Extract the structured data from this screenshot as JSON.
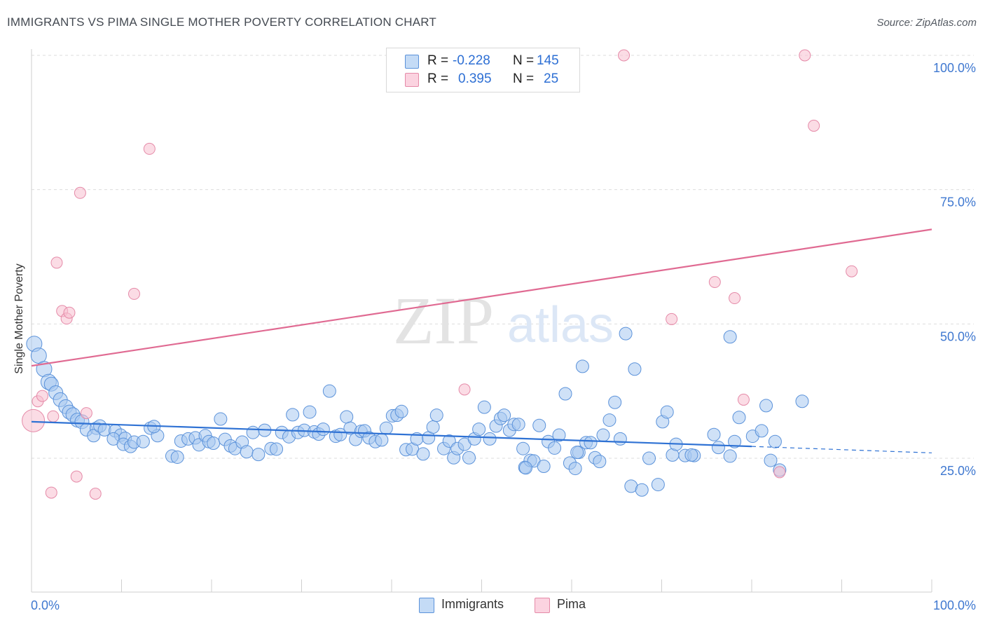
{
  "title": "IMMIGRANTS VS PIMA SINGLE MOTHER POVERTY CORRELATION CHART",
  "source": "Source: ZipAtlas.com",
  "watermark": {
    "zip": "ZIP",
    "atlas": "atlas"
  },
  "legend": {
    "rows": [
      {
        "r_label": "R =",
        "r_value": "-0.228",
        "n_label": "N =",
        "n_value": "145"
      },
      {
        "r_label": "R =",
        "r_value": "0.395",
        "n_label": "N =",
        "n_value": "25"
      }
    ]
  },
  "bottom_legend": {
    "immigrants": "Immigrants",
    "pima": "Pima"
  },
  "colors": {
    "immigrants_fill": "#a8c8f0",
    "immigrants_stroke": "#5b92da",
    "immigrants_line": "#2f72d4",
    "pima_fill": "#f7bfd0",
    "pima_stroke": "#e58aa8",
    "pima_line": "#e06a92",
    "axis_text": "#3f78d0",
    "grid": "#dddddd"
  },
  "chart_data": {
    "type": "scatter",
    "title": "IMMIGRANTS VS PIMA SINGLE MOTHER POVERTY CORRELATION CHART",
    "xlabel": "",
    "ylabel": "Single Mother Poverty",
    "xlim": [
      0,
      100
    ],
    "ylim": [
      0,
      102
    ],
    "x_tick_labels": [
      "0.0%",
      "100.0%"
    ],
    "y_ticks": [
      25,
      50,
      75,
      100
    ],
    "y_tick_labels": [
      "25.0%",
      "50.0%",
      "75.0%",
      "100.0%"
    ],
    "series": [
      {
        "name": "Immigrants",
        "r": -0.228,
        "n": 145,
        "trend": {
          "x_start": 0,
          "y_start": 31.8,
          "x_end": 80,
          "y_end": 27.2,
          "dashed_to_x": 100,
          "dashed_to_y": 26.0
        },
        "points": [
          [
            0.3,
            46.3
          ],
          [
            0.8,
            44.1
          ],
          [
            1.4,
            41.6
          ],
          [
            1.9,
            39.2
          ],
          [
            2.2,
            38.8
          ],
          [
            2.7,
            37.2
          ],
          [
            3.2,
            35.9
          ],
          [
            3.8,
            34.6
          ],
          [
            4.2,
            33.6
          ],
          [
            4.6,
            33.1
          ],
          [
            5.1,
            32.1
          ],
          [
            5.6,
            31.8
          ],
          [
            6.1,
            30.3
          ],
          [
            7.2,
            30.6
          ],
          [
            6.9,
            29.2
          ],
          [
            7.6,
            31.0
          ],
          [
            8.1,
            30.3
          ],
          [
            9.3,
            30.1
          ],
          [
            9.9,
            29.3
          ],
          [
            9.1,
            28.6
          ],
          [
            10.4,
            28.7
          ],
          [
            10.2,
            27.6
          ],
          [
            11.0,
            27.2
          ],
          [
            11.4,
            28.0
          ],
          [
            13.2,
            30.6
          ],
          [
            12.4,
            28.1
          ],
          [
            14.0,
            29.2
          ],
          [
            13.6,
            30.9
          ],
          [
            15.6,
            25.4
          ],
          [
            16.2,
            25.2
          ],
          [
            16.6,
            28.2
          ],
          [
            17.4,
            28.6
          ],
          [
            18.2,
            28.8
          ],
          [
            18.6,
            27.5
          ],
          [
            19.3,
            29.2
          ],
          [
            19.7,
            28.1
          ],
          [
            20.2,
            27.8
          ],
          [
            21.0,
            32.3
          ],
          [
            21.5,
            28.5
          ],
          [
            22.1,
            27.3
          ],
          [
            22.6,
            26.8
          ],
          [
            23.4,
            28.0
          ],
          [
            23.9,
            26.2
          ],
          [
            24.6,
            29.8
          ],
          [
            25.2,
            25.7
          ],
          [
            25.9,
            30.2
          ],
          [
            26.6,
            26.8
          ],
          [
            27.2,
            26.7
          ],
          [
            27.8,
            29.8
          ],
          [
            28.6,
            29.0
          ],
          [
            29.0,
            33.1
          ],
          [
            29.6,
            29.8
          ],
          [
            30.3,
            30.2
          ],
          [
            30.9,
            33.6
          ],
          [
            31.4,
            29.9
          ],
          [
            31.9,
            29.5
          ],
          [
            32.4,
            30.4
          ],
          [
            33.1,
            37.5
          ],
          [
            33.8,
            29.1
          ],
          [
            34.3,
            29.4
          ],
          [
            35.0,
            32.7
          ],
          [
            35.4,
            30.6
          ],
          [
            36.0,
            28.5
          ],
          [
            36.6,
            30.0
          ],
          [
            37.0,
            30.1
          ],
          [
            37.5,
            28.8
          ],
          [
            38.2,
            28.1
          ],
          [
            38.9,
            28.4
          ],
          [
            39.4,
            30.6
          ],
          [
            40.1,
            32.9
          ],
          [
            40.6,
            33.0
          ],
          [
            41.1,
            33.7
          ],
          [
            41.6,
            26.6
          ],
          [
            42.3,
            26.7
          ],
          [
            42.8,
            28.6
          ],
          [
            43.5,
            25.8
          ],
          [
            44.1,
            28.8
          ],
          [
            44.6,
            30.8
          ],
          [
            45.0,
            33.0
          ],
          [
            45.8,
            26.8
          ],
          [
            46.4,
            28.2
          ],
          [
            46.9,
            25.1
          ],
          [
            47.3,
            26.8
          ],
          [
            48.1,
            27.6
          ],
          [
            48.6,
            25.1
          ],
          [
            49.2,
            28.6
          ],
          [
            49.7,
            30.4
          ],
          [
            50.3,
            34.5
          ],
          [
            50.9,
            28.6
          ],
          [
            51.6,
            31.0
          ],
          [
            52.1,
            32.4
          ],
          [
            52.5,
            33.0
          ],
          [
            53.1,
            30.2
          ],
          [
            53.6,
            31.3
          ],
          [
            54.1,
            31.3
          ],
          [
            54.6,
            26.8
          ],
          [
            54.8,
            23.3
          ],
          [
            55.4,
            24.6
          ],
          [
            55.8,
            24.5
          ],
          [
            56.4,
            31.1
          ],
          [
            56.9,
            23.5
          ],
          [
            57.4,
            28.1
          ],
          [
            58.1,
            26.9
          ],
          [
            58.6,
            29.3
          ],
          [
            59.3,
            37.0
          ],
          [
            59.8,
            24.1
          ],
          [
            60.4,
            23.1
          ],
          [
            60.8,
            26.1
          ],
          [
            61.2,
            42.1
          ],
          [
            61.6,
            27.9
          ],
          [
            62.1,
            27.9
          ],
          [
            62.6,
            25.1
          ],
          [
            63.1,
            24.4
          ],
          [
            63.5,
            29.3
          ],
          [
            64.2,
            32.1
          ],
          [
            64.8,
            35.4
          ],
          [
            65.4,
            28.6
          ],
          [
            66.0,
            48.2
          ],
          [
            67.0,
            41.6
          ],
          [
            66.6,
            19.8
          ],
          [
            67.8,
            19.1
          ],
          [
            68.6,
            25.0
          ],
          [
            69.6,
            20.1
          ],
          [
            70.1,
            31.8
          ],
          [
            70.6,
            33.6
          ],
          [
            71.2,
            25.6
          ],
          [
            71.6,
            27.6
          ],
          [
            72.6,
            25.5
          ],
          [
            73.6,
            25.5
          ],
          [
            75.8,
            29.4
          ],
          [
            76.3,
            27.0
          ],
          [
            77.6,
            25.4
          ],
          [
            78.1,
            28.1
          ],
          [
            78.6,
            32.6
          ],
          [
            80.1,
            29.1
          ],
          [
            81.1,
            30.1
          ],
          [
            81.6,
            34.8
          ],
          [
            82.1,
            24.6
          ],
          [
            82.6,
            28.1
          ],
          [
            83.1,
            22.8
          ],
          [
            85.6,
            35.6
          ],
          [
            73.3,
            25.6
          ],
          [
            77.6,
            47.6
          ],
          [
            60.6,
            26.1
          ],
          [
            54.9,
            23.2
          ]
        ]
      },
      {
        "name": "Pima",
        "r": 0.395,
        "n": 25,
        "trend": {
          "x_start": 0,
          "y_start": 42.2,
          "x_end": 100,
          "y_end": 67.6
        },
        "points": [
          [
            0.2,
            32.0
          ],
          [
            0.7,
            35.6
          ],
          [
            1.2,
            36.6
          ],
          [
            2.2,
            18.6
          ],
          [
            2.4,
            32.8
          ],
          [
            2.8,
            61.4
          ],
          [
            3.4,
            52.4
          ],
          [
            3.9,
            51.0
          ],
          [
            4.2,
            52.1
          ],
          [
            5.0,
            21.6
          ],
          [
            5.4,
            74.4
          ],
          [
            6.1,
            33.4
          ],
          [
            7.1,
            18.4
          ],
          [
            11.4,
            55.6
          ],
          [
            13.1,
            82.6
          ],
          [
            48.1,
            37.8
          ],
          [
            65.8,
            100.0
          ],
          [
            85.9,
            100.0
          ],
          [
            86.9,
            86.9
          ],
          [
            71.1,
            50.9
          ],
          [
            75.9,
            57.8
          ],
          [
            78.1,
            54.8
          ],
          [
            79.1,
            35.9
          ],
          [
            83.1,
            22.4
          ],
          [
            91.1,
            59.8
          ]
        ]
      }
    ]
  }
}
